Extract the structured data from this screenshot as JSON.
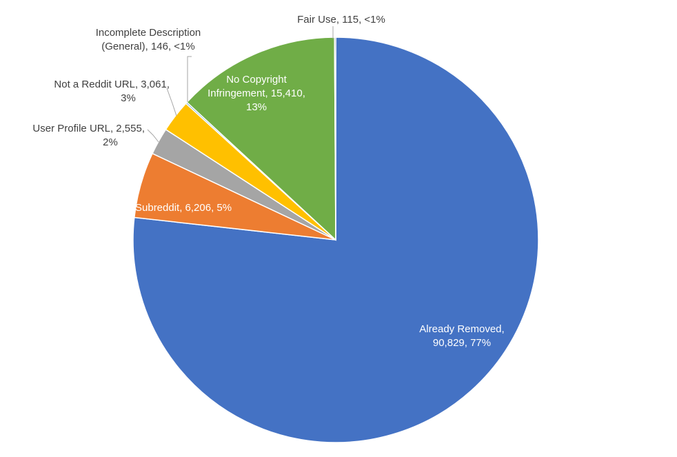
{
  "chart_data": {
    "type": "pie",
    "slices": [
      {
        "name": "Already Removed",
        "value": 90829,
        "percent": "77%",
        "color": "#4472C4",
        "label_lines": [
          "Already Removed,",
          "90,829, 77%"
        ]
      },
      {
        "name": "Subreddit",
        "value": 6206,
        "percent": "5%",
        "color": "#ED7D31",
        "label_lines": [
          "Subreddit, 6,206, 5%"
        ]
      },
      {
        "name": "User Profile URL",
        "value": 2555,
        "percent": "2%",
        "color": "#A5A5A5",
        "label_lines": [
          "User Profile URL, 2,555,",
          "2%"
        ]
      },
      {
        "name": "Not a Reddit URL",
        "value": 3061,
        "percent": "3%",
        "color": "#FFC000",
        "label_lines": [
          "Not a Reddit URL, 3,061,",
          "3%"
        ]
      },
      {
        "name": "Incomplete Description (General)",
        "value": 146,
        "percent": "<1%",
        "color": "#5B9BD5",
        "label_lines": [
          "Incomplete Description",
          "(General), 146, <1%"
        ]
      },
      {
        "name": "No Copyright Infringement",
        "value": 15410,
        "percent": "13%",
        "color": "#70AD47",
        "label_lines": [
          "No Copyright",
          "Infringement, 15,410,",
          "13%"
        ]
      },
      {
        "name": "Fair Use",
        "value": 115,
        "percent": "<1%",
        "color": "#264478",
        "label_lines": [
          "Fair Use, 115, <1%"
        ]
      }
    ],
    "start": "12 o'clock",
    "direction": "clockwise",
    "legend": "none"
  }
}
